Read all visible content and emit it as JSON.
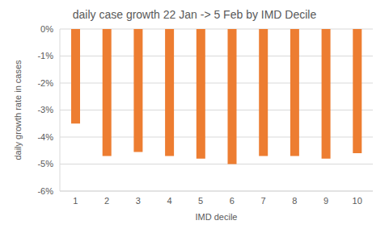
{
  "chart_data": {
    "type": "bar",
    "title": "daily case growth 22 Jan -> 5 Feb by IMD Decile",
    "x_label": "IMD decile",
    "y_label": "daily growth rate in cases",
    "categories": [
      "1",
      "2",
      "3",
      "4",
      "5",
      "6",
      "7",
      "8",
      "9",
      "10"
    ],
    "values": [
      -3.5,
      -4.7,
      -4.55,
      -4.7,
      -4.8,
      -5.0,
      -4.7,
      -4.7,
      -4.8,
      -4.6
    ],
    "color": "#ed7d31",
    "ylim": [
      -6,
      0
    ],
    "yticks": [
      {
        "value": 0,
        "label": "0%"
      },
      {
        "value": -1,
        "label": "-1%"
      },
      {
        "value": -2,
        "label": "-2%"
      },
      {
        "value": -3,
        "label": "-3%"
      },
      {
        "value": -4,
        "label": "-4%"
      },
      {
        "value": -5,
        "label": "-5%"
      },
      {
        "value": -6,
        "label": "-6%"
      }
    ],
    "grid": true
  }
}
